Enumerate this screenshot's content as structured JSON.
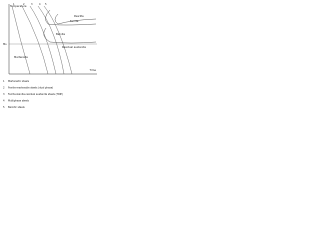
{
  "axes": {
    "y_label": "Temperature",
    "x_label": "Time",
    "ms_label": "Ms"
  },
  "regions": {
    "ferrite": "Ferrite",
    "pearlite": "Pearlite",
    "bainite": "Bainite",
    "martensite": "Martensite",
    "residual": "Residual austenite"
  },
  "curve_labels": [
    "1",
    "2",
    "3",
    "4",
    "5"
  ],
  "legend": [
    {
      "number": "1",
      "text": "Martensitic steels"
    },
    {
      "number": "2",
      "text": "Ferrite-martensite steels (dual phase)"
    },
    {
      "number": "3",
      "text": "Ferrite-bainite-residual austenite steels (TRIP)"
    },
    {
      "number": "4",
      "text": "Multiphase steels"
    },
    {
      "number": "5",
      "text": "Bainitic steels"
    }
  ]
}
